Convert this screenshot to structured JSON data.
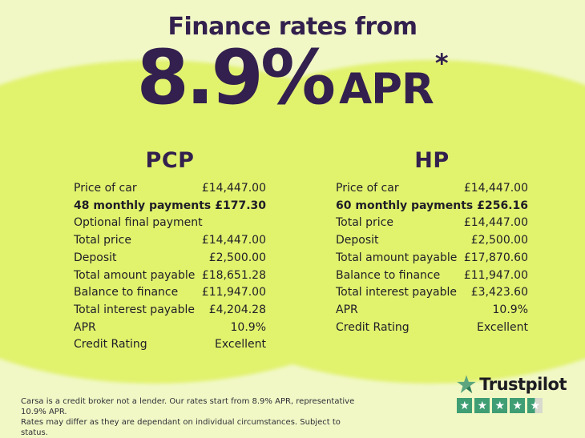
{
  "header": {
    "title": "Finance rates from",
    "rate": "8.9%",
    "apr_label": "APR",
    "asterisk": "*"
  },
  "plans": [
    {
      "name": "PCP",
      "rows": [
        {
          "label": "Price of car",
          "value": "£14,447.00",
          "bold": false
        },
        {
          "label": "48 monthly payments",
          "value": "£177.30",
          "bold": true
        },
        {
          "label": "Optional final payment",
          "value": "",
          "bold": false
        },
        {
          "label": "Total price",
          "value": "£14,447.00",
          "bold": false
        },
        {
          "label": "Deposit",
          "value": "£2,500.00",
          "bold": false
        },
        {
          "label": "Total amount payable",
          "value": "£18,651.28",
          "bold": false
        },
        {
          "label": "Balance to finance",
          "value": "£11,947.00",
          "bold": false
        },
        {
          "label": "Total interest payable",
          "value": "£4,204.28",
          "bold": false
        },
        {
          "label": "APR",
          "value": "10.9%",
          "bold": false
        },
        {
          "label": "Credit Rating",
          "value": "Excellent",
          "bold": false
        }
      ]
    },
    {
      "name": "HP",
      "rows": [
        {
          "label": "Price of car",
          "value": "£14,447.00",
          "bold": false
        },
        {
          "label": "60 monthly payments",
          "value": "£256.16",
          "bold": true
        },
        {
          "label": "Total price",
          "value": "£14,447.00",
          "bold": false
        },
        {
          "label": "Deposit",
          "value": "£2,500.00",
          "bold": false
        },
        {
          "label": "Total amount payable",
          "value": "£17,870.60",
          "bold": false
        },
        {
          "label": "Balance to finance",
          "value": "£11,947.00",
          "bold": false
        },
        {
          "label": "Total interest payable",
          "value": "£3,423.60",
          "bold": false
        },
        {
          "label": "APR",
          "value": "10.9%",
          "bold": false
        },
        {
          "label": "Credit Rating",
          "value": "Excellent",
          "bold": false
        }
      ]
    }
  ],
  "footer": {
    "disclaimer_line1": "Carsa is a credit broker not a lender. Our rates start from 8.9% APR, representative 10.9% APR.",
    "disclaimer_line2": "Rates may differ as they are dependant on individual circumstances. Subject to status."
  },
  "trustpilot": {
    "brand": "Trustpilot",
    "rating": 4.5,
    "max_stars": 5,
    "star_glyph": "★"
  },
  "colors": {
    "background": "#f1f8c6",
    "blob": "#e1f26d",
    "heading_purple": "#33204e",
    "text_dark": "#1f1e27",
    "trustpilot_green": "#3f9e74",
    "trustpilot_grey": "#d7dacd"
  }
}
